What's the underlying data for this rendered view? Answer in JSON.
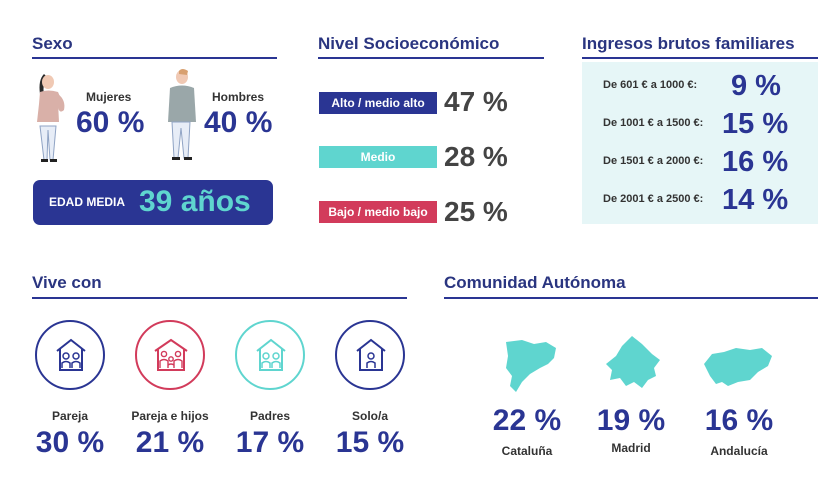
{
  "sexo": {
    "title": "Sexo",
    "women": {
      "label": "Mujeres",
      "value": "60 %"
    },
    "men": {
      "label": "Hombres",
      "value": "40 %"
    },
    "age": {
      "label": "EDAD MEDIA",
      "value": "39 años"
    }
  },
  "nivel": {
    "title": "Nivel Socioeconómico",
    "items": [
      {
        "label": "Alto / medio alto",
        "value": "47 %",
        "color": "#2a3593"
      },
      {
        "label": "Medio",
        "value": "28 %",
        "color": "#5fd5cf"
      },
      {
        "label": "Bajo / medio bajo",
        "value": "25 %",
        "color": "#d23b5b"
      }
    ]
  },
  "ingresos": {
    "title": "Ingresos brutos familiares",
    "items": [
      {
        "label": "De 601 € a 1000 €:",
        "value": "9 %"
      },
      {
        "label": "De 1001 € a 1500 €:",
        "value": "15 %"
      },
      {
        "label": "De 1501 € a 2000 €:",
        "value": "16 %"
      },
      {
        "label": "De 2001 € a 2500 €:",
        "value": "14 %"
      }
    ]
  },
  "vive": {
    "title": "Vive con",
    "items": [
      {
        "label": "Pareja",
        "value": "30 %",
        "icon": "couple-house-icon",
        "color": "#2a3593"
      },
      {
        "label": "Pareja e hijos",
        "value": "21 %",
        "icon": "family-house-icon",
        "color": "#d23b5b"
      },
      {
        "label": "Padres",
        "value": "17 %",
        "icon": "parents-house-icon",
        "color": "#5fd5cf"
      },
      {
        "label": "Solo/a",
        "value": "15 %",
        "icon": "single-house-icon",
        "color": "#2a3593"
      }
    ]
  },
  "comunidad": {
    "title": "Comunidad Autónoma",
    "items": [
      {
        "label": "Cataluña",
        "value": "22 %",
        "icon": "cataluna-map-icon"
      },
      {
        "label": "Madrid",
        "value": "19 %",
        "icon": "madrid-map-icon"
      },
      {
        "label": "Andalucía",
        "value": "16 %",
        "icon": "andalucia-map-icon"
      }
    ],
    "map_color": "#5fd5cf"
  }
}
